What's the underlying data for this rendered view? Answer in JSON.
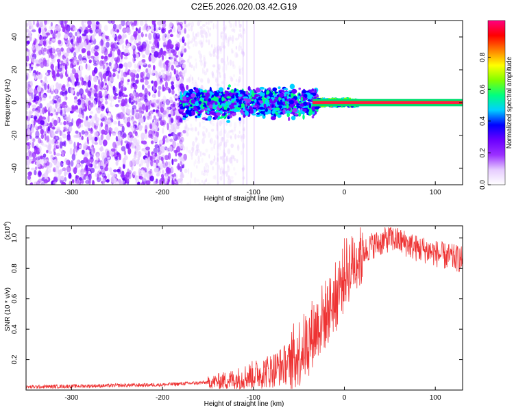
{
  "title": "C2E5.2026.020.03.42.G19",
  "chart_data": [
    {
      "type": "heatmap",
      "xlabel": "Height of straight line (km)",
      "ylabel": "Frequency (Hz)",
      "xlim": [
        -350,
        130
      ],
      "ylim": [
        -50,
        50
      ],
      "x_ticks": [
        -300,
        -200,
        -100,
        0,
        100
      ],
      "y_ticks": [
        -40,
        -20,
        0,
        20,
        40
      ],
      "colorbar": {
        "label": "Normalized spectral amplitude",
        "range": [
          0,
          1
        ],
        "ticks": [
          "0.0",
          "0.2",
          "0.4",
          "0.6",
          "0.8"
        ],
        "colors": [
          "#ffffff",
          "#e6ccff",
          "#9b30ff",
          "#6a00ff",
          "#0000ff",
          "#00d0ff",
          "#00ff80",
          "#80ff00",
          "#ffff00",
          "#ff8000",
          "#ff0000",
          "#ff0080"
        ]
      },
      "regions": [
        {
          "desc": "scattered noise",
          "x_range": [
            -350,
            -180
          ],
          "f_range": [
            -50,
            50
          ],
          "amplitude": 0.1
        },
        {
          "desc": "fading noise",
          "x_range": [
            -180,
            -110
          ],
          "f_range": [
            -50,
            50
          ],
          "amplitude": 0.05
        },
        {
          "desc": "signal band (broad)",
          "x_range": [
            -180,
            -30
          ],
          "f_range": [
            -12,
            8
          ],
          "amplitude": 0.35
        },
        {
          "desc": "signal band (narrowing)",
          "x_range": [
            -30,
            10
          ],
          "f_range": [
            -3,
            3
          ],
          "amplitude": 0.5
        },
        {
          "desc": "carrier line",
          "x_range": [
            10,
            130
          ],
          "f_range": [
            -1,
            1
          ],
          "amplitude": 0.9
        }
      ]
    },
    {
      "type": "line",
      "xlabel": "Height of straight line (km)",
      "ylabel": "SNR (10 * v/v)",
      "y_multiplier": "(x10",
      "y_multiplier_exp": "4",
      "y_multiplier_close": ")",
      "xlim": [
        -350,
        130
      ],
      "ylim": [
        0,
        1.08
      ],
      "x_ticks": [
        -300,
        -200,
        -100,
        0,
        100
      ],
      "y_ticks": [
        "0.2",
        "0.4",
        "0.6",
        "0.8",
        "1.0"
      ],
      "color": "#ee3333",
      "series": [
        {
          "name": "SNR",
          "x": [
            -350,
            -300,
            -250,
            -200,
            -150,
            -120,
            -100,
            -80,
            -60,
            -50,
            -40,
            -30,
            -20,
            -15,
            -10,
            -5,
            0,
            10,
            20,
            30,
            40,
            50,
            60,
            70,
            80,
            90,
            100,
            110,
            120,
            130
          ],
          "y": [
            0.02,
            0.025,
            0.03,
            0.035,
            0.05,
            0.07,
            0.1,
            0.13,
            0.18,
            0.25,
            0.32,
            0.42,
            0.5,
            0.56,
            0.6,
            0.68,
            0.76,
            0.84,
            0.9,
            0.95,
            0.97,
            1.0,
            0.98,
            0.96,
            0.93,
            0.92,
            0.9,
            0.88,
            0.87,
            0.86
          ]
        }
      ]
    }
  ]
}
